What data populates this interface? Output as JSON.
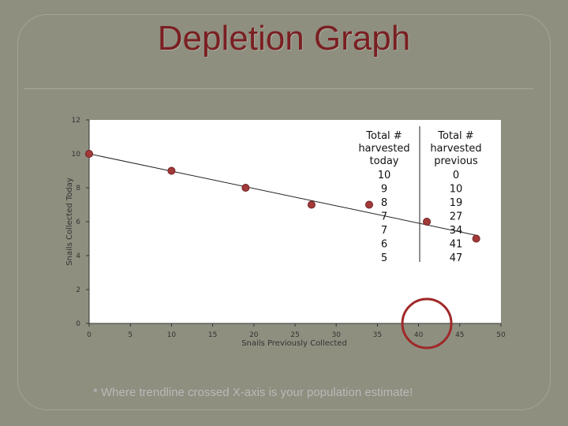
{
  "slide": {
    "title": "Depletion Graph",
    "note": "* Where trendline crossed X-axis is your population estimate!"
  },
  "chart_data": {
    "type": "scatter",
    "title": "",
    "xlabel": "Snails Previously Collected",
    "ylabel": "Snails Collected Today",
    "xlim": [
      0,
      50
    ],
    "ylim": [
      0,
      12
    ],
    "xticks": [
      "0",
      "5",
      "10",
      "15",
      "20",
      "25",
      "30",
      "35",
      "40",
      "45",
      "50"
    ],
    "yticks": [
      "0",
      "2",
      "4",
      "6",
      "8",
      "10",
      "12"
    ],
    "grid": false,
    "series": [
      {
        "x": [
          0,
          10,
          19,
          27,
          34,
          41,
          47
        ],
        "y": [
          10,
          9,
          8,
          7,
          7,
          6,
          5
        ]
      }
    ],
    "trendline": {
      "type": "linear",
      "from": [
        0,
        10
      ],
      "to": [
        47,
        5.2
      ]
    },
    "table": {
      "headers": [
        "Total # harvested today",
        "Total # harvested previous"
      ],
      "header_lines": [
        [
          "Total #",
          "harvested",
          "today"
        ],
        [
          "Total #",
          "harvested",
          "previous"
        ]
      ],
      "rows": [
        [
          "10",
          "0"
        ],
        [
          "9",
          "10"
        ],
        [
          "8",
          "19"
        ],
        [
          "7",
          "27"
        ],
        [
          "7",
          "34"
        ],
        [
          "6",
          "41"
        ],
        [
          "5",
          "47"
        ]
      ]
    },
    "highlight_circle": {
      "x": 41,
      "y": 0
    },
    "colors": {
      "marker": "#a33a3a",
      "marker_edge": "#6e1f1f",
      "circle": "#a02828",
      "plot_bg": "#ffffff",
      "axis": "#333333"
    }
  }
}
